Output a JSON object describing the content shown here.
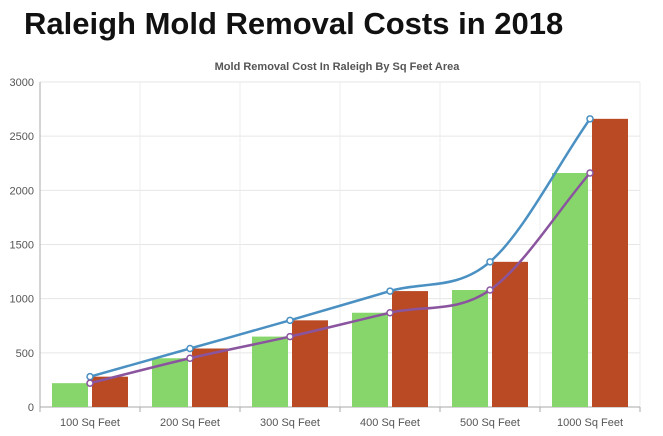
{
  "page": {
    "heading": "Raleigh Mold Removal Costs in 2018"
  },
  "chart_data": {
    "type": "bar",
    "title": "Mold Removal Cost In Raleigh By Sq Feet Area",
    "xlabel": "",
    "ylabel": "",
    "categories": [
      "100 Sq Feet",
      "200 Sq Feet",
      "300 Sq Feet",
      "400 Sq Feet",
      "500 Sq Feet",
      "1000 Sq Feet"
    ],
    "ylim": [
      0,
      3000
    ],
    "yticks": [
      0,
      500,
      1000,
      1500,
      2000,
      2500,
      3000
    ],
    "grid": true,
    "legend": "none",
    "series": [
      {
        "kind": "bar",
        "color": "#86d66b",
        "values": [
          220,
          450,
          650,
          870,
          1080,
          2160
        ]
      },
      {
        "kind": "bar",
        "color": "#b94a24",
        "values": [
          280,
          540,
          800,
          1070,
          1340,
          2660
        ]
      },
      {
        "kind": "line",
        "color": "#4a90c2",
        "values": [
          280,
          540,
          800,
          1070,
          1340,
          2660
        ]
      },
      {
        "kind": "line",
        "color": "#8a559e",
        "values": [
          220,
          450,
          650,
          870,
          1080,
          2160
        ]
      }
    ]
  }
}
